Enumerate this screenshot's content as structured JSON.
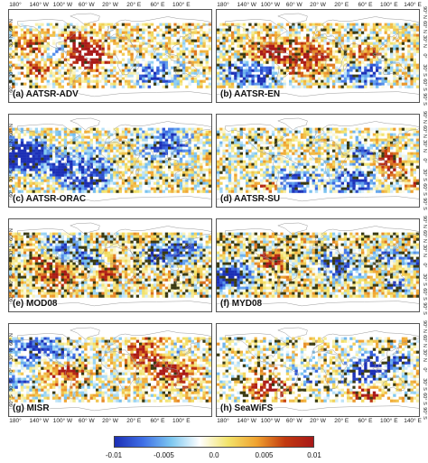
{
  "panels": [
    {
      "label": "(a) AATSR-ADV",
      "seed": 11,
      "density": 0.72,
      "bias": 0.05,
      "green": 0.1
    },
    {
      "label": "(b) AATSR-EN",
      "seed": 23,
      "density": 0.8,
      "bias": 0.02,
      "green": 0.12
    },
    {
      "label": "(c) AATSR-ORAC",
      "seed": 37,
      "density": 0.85,
      "bias": 0.0,
      "green": 0.08
    },
    {
      "label": "(d) AATSR-SU",
      "seed": 41,
      "density": 0.8,
      "bias": -0.02,
      "green": 0.1
    },
    {
      "label": "(e) MOD08",
      "seed": 53,
      "density": 0.92,
      "bias": 0.08,
      "green": 0.22
    },
    {
      "label": "(f) MYD08",
      "seed": 67,
      "density": 0.92,
      "bias": 0.06,
      "green": 0.24
    },
    {
      "label": "(g) MISR",
      "seed": 79,
      "density": 0.78,
      "bias": 0.02,
      "green": 0.08
    },
    {
      "label": "(h) SeaWiFS",
      "seed": 83,
      "density": 0.62,
      "bias": 0.0,
      "green": 0.16
    }
  ],
  "lon_ticks": [
    "180°",
    "140° W",
    "100° W",
    "60° W",
    "20° W",
    "20° E",
    "60° E",
    "100° E",
    "140° E"
  ],
  "lon_ticks_left_col": [
    "180°",
    "140° W",
    "100° W",
    "60° W",
    "20° W",
    "20° E",
    "60° E",
    "100° E"
  ],
  "lat_ticks": [
    "90° N",
    "60° N",
    "30° N",
    "0°",
    "30° S",
    "60° S",
    "90° S"
  ],
  "lat_ticks_left": [
    "60° N",
    "30° N",
    "0°",
    "30° S",
    "60° S"
  ],
  "colorbar": {
    "labels": [
      "-0.01",
      "-0.005",
      "0.0",
      "0.005",
      "0.01"
    ],
    "colors": [
      "#1c2fb5",
      "#3f6fe6",
      "#7ec8f0",
      "#ffffff",
      "#f2e36a",
      "#f0a230",
      "#c23a10",
      "#a81818"
    ]
  },
  "map_colors": {
    "land_outline": "#9a9a9a",
    "significant": "#3a3a12"
  }
}
